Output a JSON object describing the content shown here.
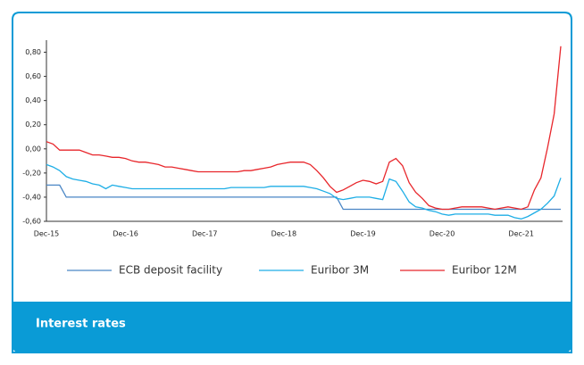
{
  "card": {
    "caption": "Interest rates"
  },
  "chart_data": {
    "type": "line",
    "categories": [
      "Dec-15",
      null,
      null,
      null,
      null,
      null,
      null,
      null,
      null,
      null,
      null,
      null,
      "Dec-16",
      null,
      null,
      null,
      null,
      null,
      null,
      null,
      null,
      null,
      null,
      null,
      "Dec-17",
      null,
      null,
      null,
      null,
      null,
      null,
      null,
      null,
      null,
      null,
      null,
      "Dec-18",
      null,
      null,
      null,
      null,
      null,
      null,
      null,
      null,
      null,
      null,
      null,
      "Dec-19",
      null,
      null,
      null,
      null,
      null,
      null,
      null,
      null,
      null,
      null,
      null,
      "Dec-20",
      null,
      null,
      null,
      null,
      null,
      null,
      null,
      null,
      null,
      null,
      null,
      "Dec-21",
      null,
      null,
      null,
      null,
      null,
      null
    ],
    "series": [
      {
        "name": "ECB deposit facility",
        "color": "#4a86c5",
        "values": [
          -0.3,
          -0.3,
          -0.3,
          -0.4,
          -0.4,
          -0.4,
          -0.4,
          -0.4,
          -0.4,
          -0.4,
          -0.4,
          -0.4,
          -0.4,
          -0.4,
          -0.4,
          -0.4,
          -0.4,
          -0.4,
          -0.4,
          -0.4,
          -0.4,
          -0.4,
          -0.4,
          -0.4,
          -0.4,
          -0.4,
          -0.4,
          -0.4,
          -0.4,
          -0.4,
          -0.4,
          -0.4,
          -0.4,
          -0.4,
          -0.4,
          -0.4,
          -0.4,
          -0.4,
          -0.4,
          -0.4,
          -0.4,
          -0.4,
          -0.4,
          -0.4,
          -0.4,
          -0.5,
          -0.5,
          -0.5,
          -0.5,
          -0.5,
          -0.5,
          -0.5,
          -0.5,
          -0.5,
          -0.5,
          -0.5,
          -0.5,
          -0.5,
          -0.5,
          -0.5,
          -0.5,
          -0.5,
          -0.5,
          -0.5,
          -0.5,
          -0.5,
          -0.5,
          -0.5,
          -0.5,
          -0.5,
          -0.5,
          -0.5,
          -0.5,
          -0.5,
          -0.5,
          -0.5,
          -0.5,
          -0.5,
          -0.5
        ]
      },
      {
        "name": "Euribor 3M",
        "color": "#1eaee6",
        "values": [
          -0.13,
          -0.15,
          -0.18,
          -0.23,
          -0.25,
          -0.26,
          -0.27,
          -0.29,
          -0.3,
          -0.33,
          -0.3,
          -0.31,
          -0.32,
          -0.33,
          -0.33,
          -0.33,
          -0.33,
          -0.33,
          -0.33,
          -0.33,
          -0.33,
          -0.33,
          -0.33,
          -0.33,
          -0.33,
          -0.33,
          -0.33,
          -0.33,
          -0.32,
          -0.32,
          -0.32,
          -0.32,
          -0.32,
          -0.32,
          -0.31,
          -0.31,
          -0.31,
          -0.31,
          -0.31,
          -0.31,
          -0.32,
          -0.33,
          -0.35,
          -0.37,
          -0.41,
          -0.42,
          -0.41,
          -0.4,
          -0.4,
          -0.4,
          -0.41,
          -0.42,
          -0.25,
          -0.27,
          -0.35,
          -0.44,
          -0.48,
          -0.49,
          -0.51,
          -0.52,
          -0.54,
          -0.55,
          -0.54,
          -0.54,
          -0.54,
          -0.54,
          -0.54,
          -0.54,
          -0.55,
          -0.55,
          -0.55,
          -0.57,
          -0.58,
          -0.56,
          -0.53,
          -0.5,
          -0.45,
          -0.39,
          -0.24
        ]
      },
      {
        "name": "Euribor 12M",
        "color": "#e8262b",
        "values": [
          0.06,
          0.04,
          -0.01,
          -0.01,
          -0.01,
          -0.01,
          -0.03,
          -0.05,
          -0.05,
          -0.06,
          -0.07,
          -0.07,
          -0.08,
          -0.1,
          -0.11,
          -0.11,
          -0.12,
          -0.13,
          -0.15,
          -0.15,
          -0.16,
          -0.17,
          -0.18,
          -0.19,
          -0.19,
          -0.19,
          -0.19,
          -0.19,
          -0.19,
          -0.19,
          -0.18,
          -0.18,
          -0.17,
          -0.16,
          -0.15,
          -0.13,
          -0.12,
          -0.11,
          -0.11,
          -0.11,
          -0.13,
          -0.18,
          -0.24,
          -0.31,
          -0.36,
          -0.34,
          -0.31,
          -0.28,
          -0.26,
          -0.27,
          -0.29,
          -0.27,
          -0.11,
          -0.08,
          -0.14,
          -0.28,
          -0.36,
          -0.41,
          -0.47,
          -0.49,
          -0.5,
          -0.5,
          -0.49,
          -0.48,
          -0.48,
          -0.48,
          -0.48,
          -0.49,
          -0.5,
          -0.49,
          -0.48,
          -0.49,
          -0.5,
          -0.48,
          -0.34,
          -0.24,
          0.01,
          0.29,
          0.85
        ]
      }
    ],
    "ylim": [
      -0.6,
      0.9
    ],
    "yticks": [
      {
        "value": -0.6,
        "label": "-0,60"
      },
      {
        "value": -0.4,
        "label": "-0,40"
      },
      {
        "value": -0.2,
        "label": "-0,20"
      },
      {
        "value": 0,
        "label": "0,00"
      },
      {
        "value": 0.2,
        "label": "0,20"
      },
      {
        "value": 0.4,
        "label": "0,40"
      },
      {
        "value": 0.6,
        "label": "0,60"
      },
      {
        "value": 0.8,
        "label": "0,80"
      }
    ],
    "grid": false,
    "legend": "bottom"
  }
}
